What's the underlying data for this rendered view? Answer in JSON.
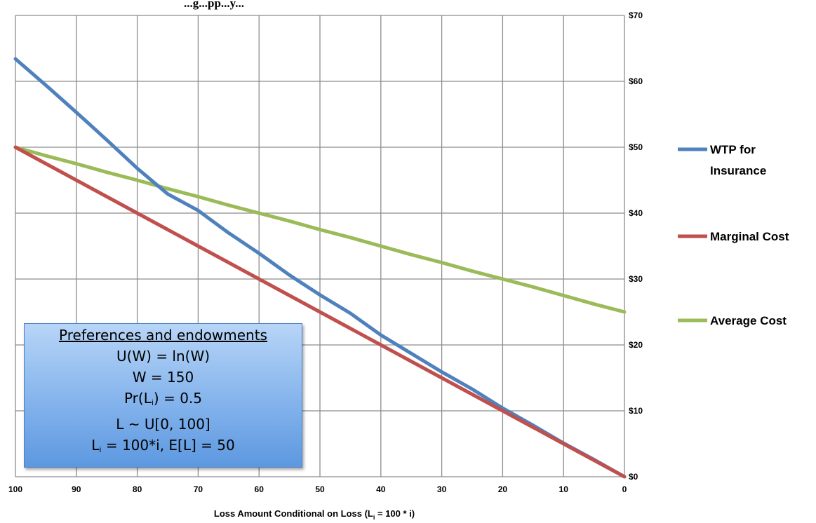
{
  "chart_data": {
    "type": "line",
    "title": "",
    "top_text": "...g...pp...y...",
    "xlabel": {
      "pre": "Loss Amount Conditional on Loss (L",
      "sub": "i",
      "post": " = 100 * i)"
    },
    "ylabel": "",
    "x_ticks": [
      "100",
      "90",
      "80",
      "70",
      "60",
      "50",
      "40",
      "30",
      "20",
      "10",
      "0"
    ],
    "y_ticks": [
      "$0",
      "$10",
      "$20",
      "$30",
      "$40",
      "$50",
      "$60",
      "$70"
    ],
    "xlim": [
      100,
      0
    ],
    "ylim": [
      0,
      70
    ],
    "x_reversed": true,
    "grid": true,
    "legend_position": "right",
    "series": [
      {
        "name_lines": [
          "WTP for",
          "Insurance"
        ],
        "color": "#4f81bd",
        "x": [
          100,
          95,
          90,
          85,
          80,
          75,
          70,
          65,
          60,
          55,
          50,
          45,
          40,
          35,
          30,
          25,
          20,
          15,
          10,
          5,
          0
        ],
        "y": [
          63.4,
          59.4,
          55.3,
          51.1,
          46.8,
          42.9,
          40.4,
          37.0,
          33.9,
          30.6,
          27.6,
          24.8,
          21.5,
          18.7,
          15.9,
          13.3,
          10.4,
          7.8,
          5.1,
          2.6,
          0
        ]
      },
      {
        "name_lines": [
          "Marginal Cost"
        ],
        "color": "#c0504d",
        "x": [
          100,
          95,
          90,
          85,
          80,
          75,
          70,
          65,
          60,
          55,
          50,
          45,
          40,
          35,
          30,
          25,
          20,
          15,
          10,
          5,
          0
        ],
        "y": [
          50.0,
          47.5,
          45.0,
          42.5,
          40.0,
          37.5,
          35.0,
          32.5,
          30.0,
          27.5,
          25.0,
          22.5,
          20.0,
          17.5,
          15.0,
          12.5,
          10.0,
          7.5,
          5.0,
          2.5,
          0
        ]
      },
      {
        "name_lines": [
          "Average Cost"
        ],
        "color": "#9bbb59",
        "x": [
          100,
          95,
          90,
          85,
          80,
          75,
          70,
          65,
          60,
          55,
          50,
          45,
          40,
          35,
          30,
          25,
          20,
          15,
          10,
          5,
          0
        ],
        "y": [
          50.0,
          48.7,
          47.5,
          46.2,
          45.0,
          43.7,
          42.5,
          41.2,
          40.0,
          38.8,
          37.5,
          36.3,
          35.0,
          33.7,
          32.5,
          31.2,
          30.0,
          28.8,
          27.5,
          26.2,
          25.0
        ]
      }
    ]
  },
  "info_box": {
    "heading": "Preferences and endowments",
    "line1": "U(W) = ln(W)",
    "line2": "W = 150",
    "line3_pre": "Pr(L",
    "line3_sub": "i",
    "line3_post": ") = 0.5",
    "line4": "L  ~ U[0, 100]",
    "line5_pre": "L",
    "line5_sub": "i",
    "line5_post": " = 100*i, E[L] = 50"
  }
}
